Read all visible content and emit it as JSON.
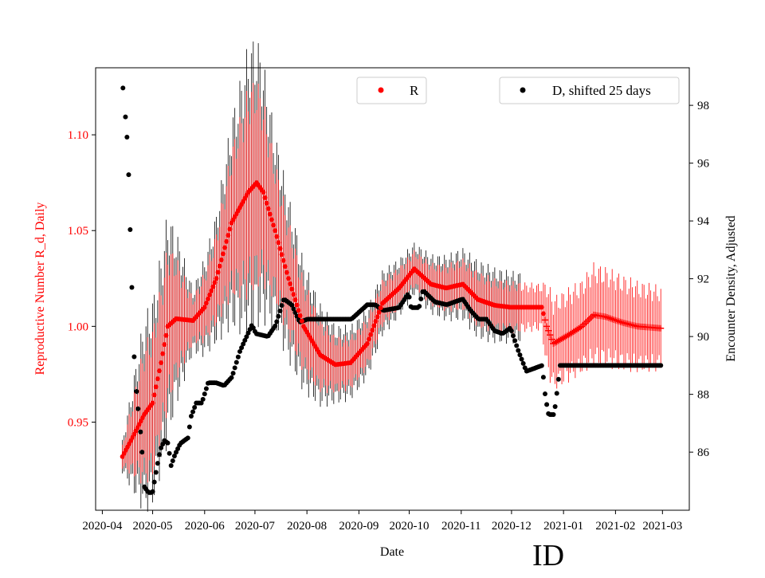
{
  "chart_data": {
    "type": "scatter",
    "xlabel": "Date",
    "ylabel_left": "Reproductive Number R_d, Daily",
    "ylabel_right": "Encounter Density, Adjusted",
    "corner_label": "ID",
    "x_origin_date": "2020-04-01",
    "xlim_days": [
      -4,
      350
    ],
    "ylim_left": [
      0.904,
      1.135
    ],
    "ylim_right": [
      83.99,
      99.3
    ],
    "x_ticks": [
      {
        "day": 0,
        "label": "2020-04"
      },
      {
        "day": 30,
        "label": "2020-05"
      },
      {
        "day": 61,
        "label": "2020-06"
      },
      {
        "day": 91,
        "label": "2020-07"
      },
      {
        "day": 122,
        "label": "2020-08"
      },
      {
        "day": 153,
        "label": "2020-09"
      },
      {
        "day": 183,
        "label": "2020-10"
      },
      {
        "day": 214,
        "label": "2020-11"
      },
      {
        "day": 244,
        "label": "2020-12"
      },
      {
        "day": 275,
        "label": "2021-01"
      },
      {
        "day": 306,
        "label": "2021-02"
      },
      {
        "day": 334,
        "label": "2021-03"
      }
    ],
    "y_ticks_left": [
      {
        "v": 0.95,
        "label": "0.95"
      },
      {
        "v": 1.0,
        "label": "1.00"
      },
      {
        "v": 1.05,
        "label": "1.05"
      },
      {
        "v": 1.1,
        "label": "1.10"
      }
    ],
    "y_ticks_right": [
      {
        "v": 86,
        "label": "86"
      },
      {
        "v": 88,
        "label": "88"
      },
      {
        "v": 90,
        "label": "90"
      },
      {
        "v": 92,
        "label": "92"
      },
      {
        "v": 94,
        "label": "94"
      },
      {
        "v": 96,
        "label": "96"
      },
      {
        "v": 98,
        "label": "98"
      }
    ],
    "legend": [
      {
        "label": "R",
        "color": "#ff0000",
        "placement": "top-center"
      },
      {
        "label": "D, shifted 25 days",
        "color": "#000000",
        "placement": "top-right"
      }
    ],
    "series": [
      {
        "name": "R",
        "axis": "left",
        "color": "#ff0000",
        "outer_err_color": "#000000",
        "plus_marker_from_day": 264,
        "points": [
          [
            12,
            0.932
          ],
          [
            18,
            0.942
          ],
          [
            25,
            0.954
          ],
          [
            30,
            0.96
          ],
          [
            35,
            0.981
          ],
          [
            39,
            1.0
          ],
          [
            44,
            1.004
          ],
          [
            54,
            1.003
          ],
          [
            61,
            1.01
          ],
          [
            68,
            1.025
          ],
          [
            77,
            1.054
          ],
          [
            87,
            1.07
          ],
          [
            92,
            1.075
          ],
          [
            96,
            1.07
          ],
          [
            103,
            1.05
          ],
          [
            111,
            1.025
          ],
          [
            120,
            1.0
          ],
          [
            130,
            0.985
          ],
          [
            139,
            0.98
          ],
          [
            148,
            0.981
          ],
          [
            158,
            0.991
          ],
          [
            167,
            1.012
          ],
          [
            177,
            1.02
          ],
          [
            186,
            1.03
          ],
          [
            196,
            1.022
          ],
          [
            205,
            1.02
          ],
          [
            215,
            1.022
          ],
          [
            224,
            1.014
          ],
          [
            234,
            1.011
          ],
          [
            243,
            1.01
          ],
          [
            262,
            1.01
          ],
          [
            265,
            1.0
          ],
          [
            269,
            0.991
          ],
          [
            277,
            0.995
          ],
          [
            286,
            1.0
          ],
          [
            293,
            1.006
          ],
          [
            300,
            1.005
          ],
          [
            310,
            1.002
          ],
          [
            319,
            1.0
          ],
          [
            333,
            0.999
          ]
        ],
        "err_inner": [
          [
            12,
            0.005
          ],
          [
            25,
            0.03
          ],
          [
            39,
            0.035
          ],
          [
            54,
            0.01
          ],
          [
            68,
            0.02
          ],
          [
            87,
            0.045
          ],
          [
            92,
            0.045
          ],
          [
            103,
            0.03
          ],
          [
            120,
            0.02
          ],
          [
            139,
            0.012
          ],
          [
            167,
            0.01
          ],
          [
            186,
            0.008
          ],
          [
            224,
            0.012
          ],
          [
            262,
            0.01
          ],
          [
            265,
            0.02
          ],
          [
            286,
            0.02
          ],
          [
            293,
            0.022
          ],
          [
            333,
            0.018
          ]
        ],
        "err_outer_factor_until_day": 250,
        "err_outer_factor": 1.4
      },
      {
        "name": "D, shifted 25 days",
        "axis": "right",
        "color": "#000000",
        "points": [
          [
            12.3,
            98.6
          ],
          [
            13.8,
            97.6
          ],
          [
            14.7,
            96.9
          ],
          [
            15.7,
            95.6
          ],
          [
            16.6,
            93.7
          ],
          [
            17.6,
            91.7
          ],
          [
            19.0,
            89.3
          ],
          [
            20.4,
            88.1
          ],
          [
            21.3,
            87.5
          ],
          [
            22.8,
            86.7
          ],
          [
            23.7,
            86.0
          ],
          [
            25.1,
            84.8
          ],
          [
            27.5,
            84.6
          ],
          [
            29.9,
            84.6
          ],
          [
            32.3,
            85.4
          ],
          [
            34.6,
            86.1
          ],
          [
            37.0,
            86.4
          ],
          [
            39.4,
            86.3
          ],
          [
            40.8,
            85.5
          ],
          [
            43.2,
            85.9
          ],
          [
            46.5,
            86.3
          ],
          [
            51.2,
            86.5
          ],
          [
            52.7,
            87.2
          ],
          [
            56.0,
            87.7
          ],
          [
            59.3,
            87.7
          ],
          [
            63.1,
            88.4
          ],
          [
            67.8,
            88.4
          ],
          [
            72.6,
            88.3
          ],
          [
            77.3,
            88.6
          ],
          [
            82.1,
            89.5
          ],
          [
            89.2,
            90.4
          ],
          [
            91.6,
            90.1
          ],
          [
            98.7,
            90.0
          ],
          [
            103.4,
            90.4
          ],
          [
            108.2,
            91.3
          ],
          [
            112.9,
            91.1
          ],
          [
            117.6,
            90.5
          ],
          [
            122.4,
            90.6
          ],
          [
            129.5,
            90.6
          ],
          [
            148.5,
            90.6
          ],
          [
            158.0,
            91.1
          ],
          [
            162.7,
            91.1
          ],
          [
            167.5,
            90.9
          ],
          [
            176.9,
            91.0
          ],
          [
            182.6,
            91.5
          ],
          [
            184.1,
            91.0
          ],
          [
            188.8,
            91.0
          ],
          [
            191.2,
            91.6
          ],
          [
            198.3,
            91.2
          ],
          [
            205.4,
            91.1
          ],
          [
            214.9,
            91.3
          ],
          [
            219.6,
            90.9
          ],
          [
            224.4,
            90.6
          ],
          [
            229.1,
            90.6
          ],
          [
            233.9,
            90.2
          ],
          [
            238.6,
            90.1
          ],
          [
            243.4,
            90.3
          ],
          [
            248.1,
            89.5
          ],
          [
            252.8,
            88.8
          ],
          [
            257.6,
            88.9
          ],
          [
            262.3,
            89.0
          ],
          [
            264.2,
            87.9
          ],
          [
            266.1,
            87.3
          ],
          [
            269.4,
            87.3
          ],
          [
            271.8,
            88.4
          ],
          [
            272.8,
            89.0
          ],
          [
            281.3,
            89.0
          ],
          [
            333.5,
            89.0
          ]
        ]
      }
    ]
  }
}
